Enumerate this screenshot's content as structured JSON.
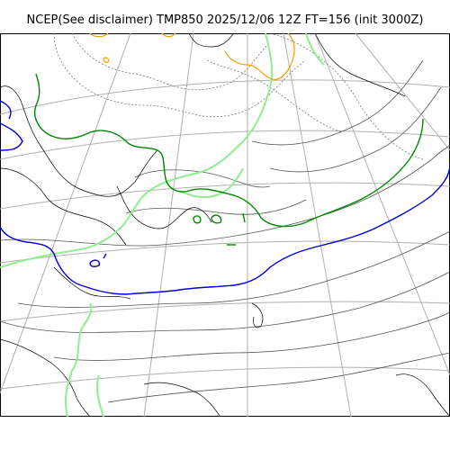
{
  "title": "NCEP(See disclaimer) TMP850 2025/12/06 12Z FT=156 (init 3000Z)",
  "map": {
    "projection": "polar-stereographic",
    "colors": {
      "coastline": "#000000",
      "graticule": "#b0b0b0",
      "isotherm": "#555555",
      "isotherm_neg": "#777777",
      "freezing_line": "#0000dd",
      "minus6_line": "#90ee90",
      "contour_green": "#008800",
      "warm_line": "#f0a000"
    },
    "features": [
      "coastline",
      "graticule",
      "solid-isotherms",
      "dashed-isotherms",
      "zero-degree-line",
      "light-green-contour",
      "dark-green-contour",
      "orange-contour"
    ]
  }
}
